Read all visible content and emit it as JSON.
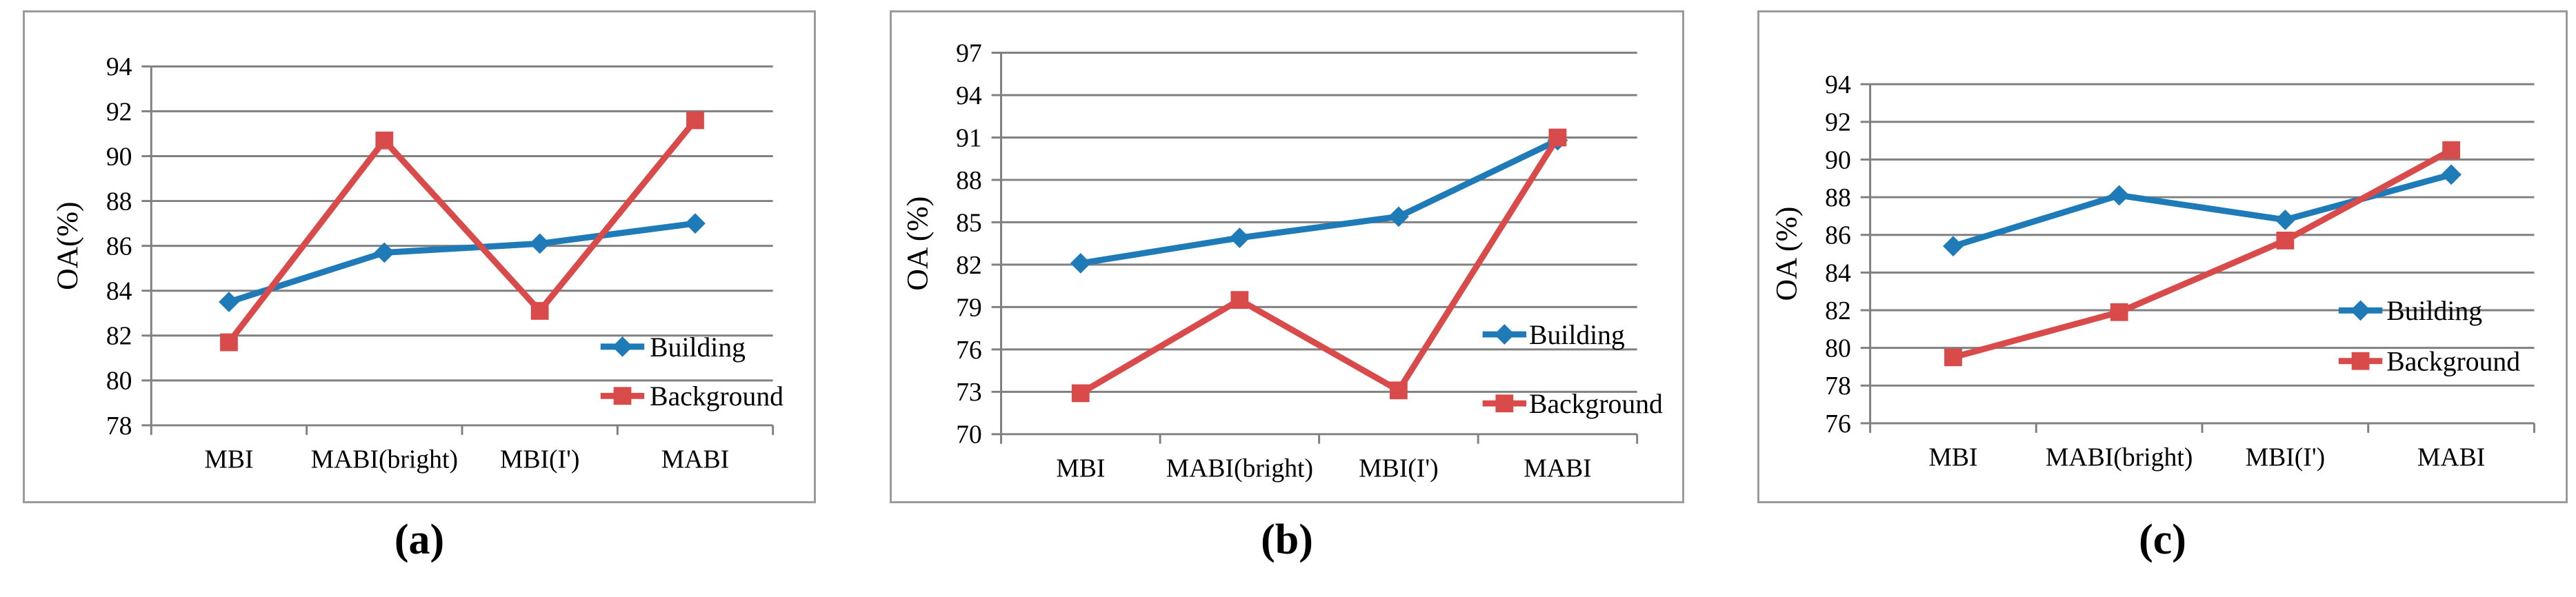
{
  "figure_title": "",
  "series_legend": {
    "building_label": "Building",
    "background_label": "Background"
  },
  "colors": {
    "building": "#1F7AB8",
    "background": "#D94B4B",
    "gridline": "#808080",
    "panel_border": "#9B9B9B",
    "text": "#000000"
  },
  "chart_data": [
    {
      "type": "line",
      "caption": "(a)",
      "ylabel": "OA(%)",
      "xlabel": "",
      "categories": [
        "MBI",
        "MABI(bright)",
        "MBI(I')",
        "MABI"
      ],
      "ylim": [
        78,
        94
      ],
      "ytick_step": 2,
      "grid": true,
      "legend_position": "inside-bottom-right",
      "series": [
        {
          "name": "Building",
          "marker": "diamond",
          "color": "#1F7AB8",
          "values": [
            83.5,
            85.7,
            86.1,
            87.0
          ]
        },
        {
          "name": "Background",
          "marker": "square",
          "color": "#D94B4B",
          "values": [
            81.7,
            90.7,
            83.1,
            91.6
          ]
        }
      ]
    },
    {
      "type": "line",
      "caption": "(b)",
      "ylabel": "OA (%)",
      "xlabel": "",
      "categories": [
        "MBI",
        "MABI(bright)",
        "MBI(I')",
        "MABI"
      ],
      "ylim": [
        70,
        97
      ],
      "ytick_step": 3,
      "grid": true,
      "legend_position": "inside-bottom-right",
      "series": [
        {
          "name": "Building",
          "marker": "diamond",
          "color": "#1F7AB8",
          "values": [
            82.1,
            83.9,
            85.4,
            90.8
          ]
        },
        {
          "name": "Background",
          "marker": "square",
          "color": "#D94B4B",
          "values": [
            72.9,
            79.5,
            73.1,
            91.0
          ]
        }
      ]
    },
    {
      "type": "line",
      "caption": "(c)",
      "ylabel": "OA (%)",
      "xlabel": "",
      "categories": [
        "MBI",
        "MABI(bright)",
        "MBI(I')",
        "MABI"
      ],
      "ylim": [
        76,
        94
      ],
      "ytick_step": 2,
      "grid": true,
      "legend_position": "inside-bottom-right",
      "series": [
        {
          "name": "Building",
          "marker": "diamond",
          "color": "#1F7AB8",
          "values": [
            85.4,
            88.1,
            86.8,
            89.2
          ]
        },
        {
          "name": "Background",
          "marker": "square",
          "color": "#D94B4B",
          "values": [
            79.5,
            81.9,
            85.7,
            90.5
          ]
        }
      ]
    }
  ]
}
